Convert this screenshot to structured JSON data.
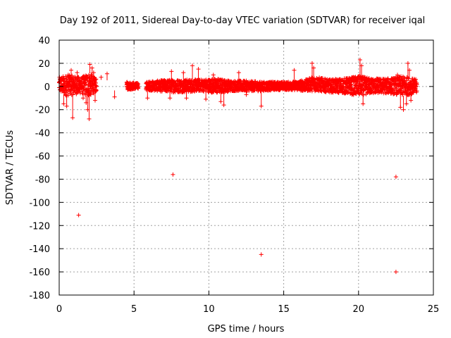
{
  "chart_data": {
    "type": "scatter",
    "title": "Day 192 of 2011, Sidereal Day-to-day VTEC variation (SDTVAR) for receiver iqal",
    "xlabel": "GPS time / hours",
    "ylabel": "SDTVAR / TECUs",
    "xlim": [
      0,
      25
    ],
    "ylim": [
      -180,
      40
    ],
    "xticks": [
      0,
      5,
      10,
      15,
      20,
      25
    ],
    "yticks": [
      40,
      20,
      0,
      -20,
      -40,
      -60,
      -80,
      -100,
      -120,
      -140,
      -160,
      -180
    ],
    "grid": true,
    "marker": "+",
    "color": "#ff0000",
    "gaps": [
      [
        2.5,
        4.5
      ],
      [
        5.3,
        5.8
      ]
    ],
    "band": [
      [
        0.0,
        -5,
        8
      ],
      [
        0.5,
        -8,
        10
      ],
      [
        1.0,
        -7,
        9
      ],
      [
        1.5,
        -6,
        8
      ],
      [
        2.0,
        -9,
        12
      ],
      [
        2.5,
        -4,
        6
      ],
      [
        4.5,
        -3,
        4
      ],
      [
        5.3,
        -2,
        3
      ],
      [
        5.8,
        -3,
        4
      ],
      [
        6.5,
        -4,
        5
      ],
      [
        7.5,
        -5,
        6
      ],
      [
        8.5,
        -5,
        6
      ],
      [
        9.5,
        -4,
        6
      ],
      [
        10.5,
        -6,
        7
      ],
      [
        11.5,
        -4,
        5
      ],
      [
        12.5,
        -4,
        5
      ],
      [
        13.5,
        -4,
        4
      ],
      [
        14.5,
        -3,
        4
      ],
      [
        15.5,
        -3,
        4
      ],
      [
        16.5,
        -4,
        6
      ],
      [
        17.0,
        -4,
        9
      ],
      [
        18.0,
        -5,
        6
      ],
      [
        19.0,
        -6,
        7
      ],
      [
        20.0,
        -8,
        9
      ],
      [
        21.0,
        -6,
        7
      ],
      [
        22.0,
        -6,
        7
      ],
      [
        23.0,
        -8,
        9
      ],
      [
        23.9,
        -6,
        6
      ]
    ],
    "points": [
      [
        0.3,
        -15
      ],
      [
        0.5,
        -17
      ],
      [
        0.6,
        10
      ],
      [
        0.8,
        14
      ],
      [
        0.9,
        -27
      ],
      [
        1.2,
        12
      ],
      [
        1.3,
        -111
      ],
      [
        1.6,
        -10
      ],
      [
        1.8,
        -14
      ],
      [
        1.9,
        -20
      ],
      [
        2.0,
        -28
      ],
      [
        2.05,
        19
      ],
      [
        2.2,
        16
      ],
      [
        2.3,
        12
      ],
      [
        2.4,
        -12
      ],
      [
        2.8,
        8
      ],
      [
        3.2,
        11
      ],
      [
        3.7,
        -9
      ],
      [
        5.9,
        -10
      ],
      [
        7.4,
        -10
      ],
      [
        7.5,
        13
      ],
      [
        7.6,
        -76
      ],
      [
        8.3,
        12
      ],
      [
        8.5,
        -10
      ],
      [
        8.9,
        18
      ],
      [
        9.3,
        15
      ],
      [
        9.8,
        -11
      ],
      [
        10.3,
        10
      ],
      [
        10.8,
        -13
      ],
      [
        11.0,
        -16
      ],
      [
        12.0,
        12
      ],
      [
        12.5,
        -7
      ],
      [
        13.5,
        -17
      ],
      [
        13.5,
        -145
      ],
      [
        15.7,
        14
      ],
      [
        16.9,
        20
      ],
      [
        17.0,
        16
      ],
      [
        20.1,
        23
      ],
      [
        20.2,
        18
      ],
      [
        20.3,
        -15
      ],
      [
        22.5,
        -78
      ],
      [
        22.5,
        -160
      ],
      [
        22.6,
        10
      ],
      [
        22.8,
        -18
      ],
      [
        23.0,
        -20
      ],
      [
        23.2,
        -15
      ],
      [
        23.3,
        20
      ],
      [
        23.4,
        14
      ],
      [
        23.5,
        -12
      ]
    ]
  }
}
